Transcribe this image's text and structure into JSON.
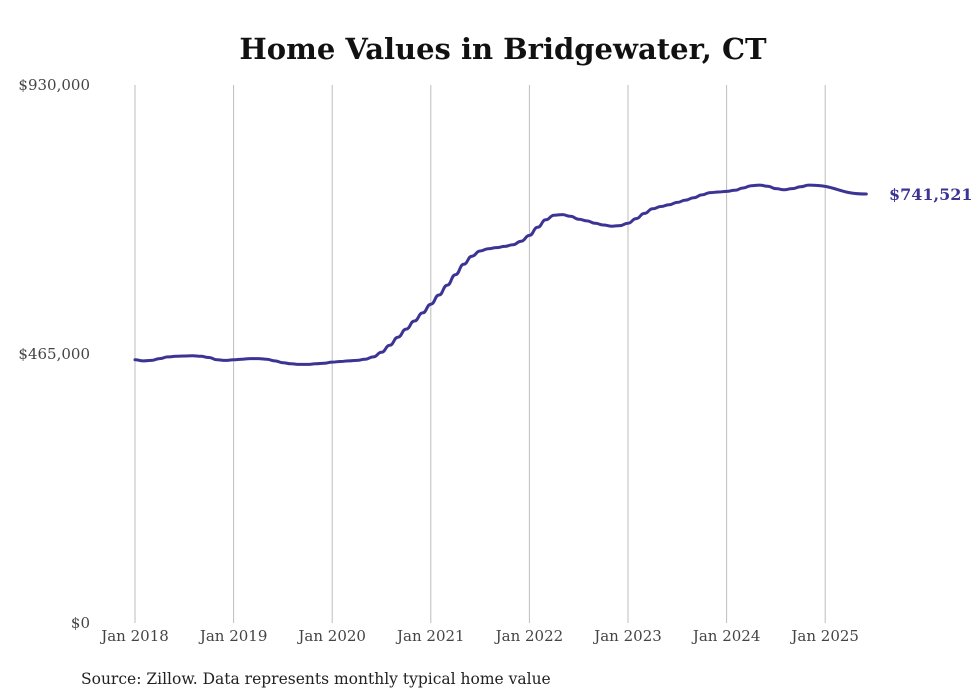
{
  "chart_data": {
    "type": "line",
    "title": "Home Values in Bridgewater, CT",
    "xlabel": "",
    "ylabel": "",
    "ylim": [
      0,
      930000
    ],
    "y_ticks": [
      {
        "value": 0,
        "label": "$0"
      },
      {
        "value": 465000,
        "label": "$465,000"
      },
      {
        "value": 930000,
        "label": "$930,000"
      }
    ],
    "x_ticks": [
      "Jan 2018",
      "Jan 2019",
      "Jan 2020",
      "Jan 2021",
      "Jan 2022",
      "Jan 2023",
      "Jan 2024",
      "Jan 2025"
    ],
    "x_start": "2018-01",
    "grid": {
      "vertical": true,
      "horizontal": false
    },
    "line_color": "#3b3494",
    "series": [
      {
        "name": "",
        "points": [
          [
            "2018-01",
            455000
          ],
          [
            "2018-02",
            453000
          ],
          [
            "2018-03",
            454000
          ],
          [
            "2018-04",
            457000
          ],
          [
            "2018-05",
            460000
          ],
          [
            "2018-06",
            461000
          ],
          [
            "2018-07",
            461500
          ],
          [
            "2018-08",
            462000
          ],
          [
            "2018-09",
            461000
          ],
          [
            "2018-10",
            459000
          ],
          [
            "2018-11",
            455000
          ],
          [
            "2018-12",
            454000
          ],
          [
            "2019-01",
            455000
          ],
          [
            "2019-02",
            456000
          ],
          [
            "2019-03",
            457000
          ],
          [
            "2019-04",
            457000
          ],
          [
            "2019-05",
            456000
          ],
          [
            "2019-06",
            453000
          ],
          [
            "2019-07",
            450000
          ],
          [
            "2019-08",
            448000
          ],
          [
            "2019-09",
            447000
          ],
          [
            "2019-10",
            447000
          ],
          [
            "2019-11",
            448000
          ],
          [
            "2019-12",
            449000
          ],
          [
            "2020-01",
            451000
          ],
          [
            "2020-02",
            452000
          ],
          [
            "2020-03",
            453000
          ],
          [
            "2020-04",
            454000
          ],
          [
            "2020-05",
            456000
          ],
          [
            "2020-06",
            460000
          ],
          [
            "2020-07",
            468000
          ],
          [
            "2020-08",
            480000
          ],
          [
            "2020-09",
            494000
          ],
          [
            "2020-10",
            508000
          ],
          [
            "2020-11",
            522000
          ],
          [
            "2020-12",
            536000
          ],
          [
            "2021-01",
            551000
          ],
          [
            "2021-02",
            567000
          ],
          [
            "2021-03",
            584000
          ],
          [
            "2021-04",
            602000
          ],
          [
            "2021-05",
            620000
          ],
          [
            "2021-06",
            634000
          ],
          [
            "2021-07",
            643000
          ],
          [
            "2021-08",
            647000
          ],
          [
            "2021-09",
            649000
          ],
          [
            "2021-10",
            651000
          ],
          [
            "2021-11",
            654000
          ],
          [
            "2021-12",
            660000
          ],
          [
            "2022-01",
            670000
          ],
          [
            "2022-02",
            684000
          ],
          [
            "2022-03",
            697000
          ],
          [
            "2022-04",
            705000
          ],
          [
            "2022-05",
            706000
          ],
          [
            "2022-06",
            703000
          ],
          [
            "2022-07",
            698000
          ],
          [
            "2022-08",
            695000
          ],
          [
            "2022-09",
            691000
          ],
          [
            "2022-10",
            688000
          ],
          [
            "2022-11",
            686000
          ],
          [
            "2022-12",
            687000
          ],
          [
            "2023-01",
            691000
          ],
          [
            "2023-02",
            699000
          ],
          [
            "2023-03",
            708000
          ],
          [
            "2023-04",
            716000
          ],
          [
            "2023-05",
            720000
          ],
          [
            "2023-06",
            723000
          ],
          [
            "2023-07",
            727000
          ],
          [
            "2023-08",
            731000
          ],
          [
            "2023-09",
            735000
          ],
          [
            "2023-10",
            740000
          ],
          [
            "2023-11",
            744000
          ],
          [
            "2023-12",
            745000
          ],
          [
            "2024-01",
            746000
          ],
          [
            "2024-02",
            748000
          ],
          [
            "2024-03",
            752000
          ],
          [
            "2024-04",
            756000
          ],
          [
            "2024-05",
            757000
          ],
          [
            "2024-06",
            755000
          ],
          [
            "2024-07",
            751000
          ],
          [
            "2024-08",
            749000
          ],
          [
            "2024-09",
            751000
          ],
          [
            "2024-10",
            754000
          ],
          [
            "2024-11",
            757000
          ],
          [
            "2024-12",
            741521
          ]
        ]
      }
    ],
    "end_label": "$741,521",
    "source": "Source: Zillow. Data represents monthly typical home value"
  }
}
